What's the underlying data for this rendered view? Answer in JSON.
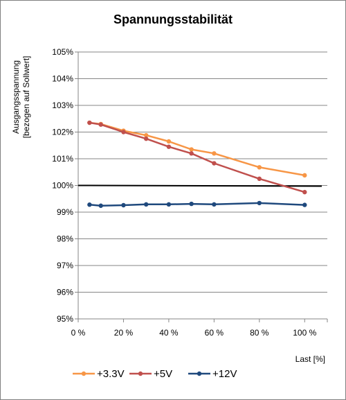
{
  "chart_data": {
    "type": "line",
    "title": "Spannungsstabilität",
    "ylabel_lines": [
      "Ausgangsspannung",
      "[bezogen auf Sollwert]"
    ],
    "xlabel": "Last [%]",
    "xlim": [
      0,
      110
    ],
    "ylim": [
      95,
      105
    ],
    "x_ticks": [
      0,
      20,
      40,
      60,
      80,
      100
    ],
    "x_tick_labels": [
      "0 %",
      "20 %",
      "40 %",
      "60 %",
      "80 %",
      "100 %"
    ],
    "y_ticks": [
      95,
      96,
      97,
      98,
      99,
      100,
      101,
      102,
      103,
      104,
      105
    ],
    "y_tick_labels": [
      "95%",
      "96%",
      "97%",
      "98%",
      "99%",
      "100%",
      "101%",
      "102%",
      "103%",
      "104%",
      "105%"
    ],
    "grid": "horizontal",
    "legend_position": "bottom",
    "reference_line": {
      "y": 100,
      "x_range": [
        0,
        110
      ],
      "color": "#000000"
    },
    "series": [
      {
        "name": "+3.3V",
        "color": "#f79646",
        "x": [
          5,
          10,
          20,
          30,
          40,
          50,
          60,
          80,
          100
        ],
        "values": [
          102.35,
          102.3,
          102.05,
          101.88,
          101.65,
          101.35,
          101.2,
          100.68,
          100.38
        ]
      },
      {
        "name": "+5V",
        "color": "#c0504d",
        "x": [
          5,
          10,
          20,
          30,
          40,
          50,
          60,
          80,
          100
        ],
        "values": [
          102.35,
          102.28,
          102.0,
          101.75,
          101.45,
          101.2,
          100.83,
          100.25,
          99.75
        ]
      },
      {
        "name": "+12V",
        "color": "#1f497d",
        "x": [
          5,
          10,
          20,
          30,
          40,
          50,
          60,
          80,
          100
        ],
        "values": [
          99.28,
          99.24,
          99.26,
          99.29,
          99.29,
          99.31,
          99.29,
          99.34,
          99.27
        ]
      }
    ]
  }
}
